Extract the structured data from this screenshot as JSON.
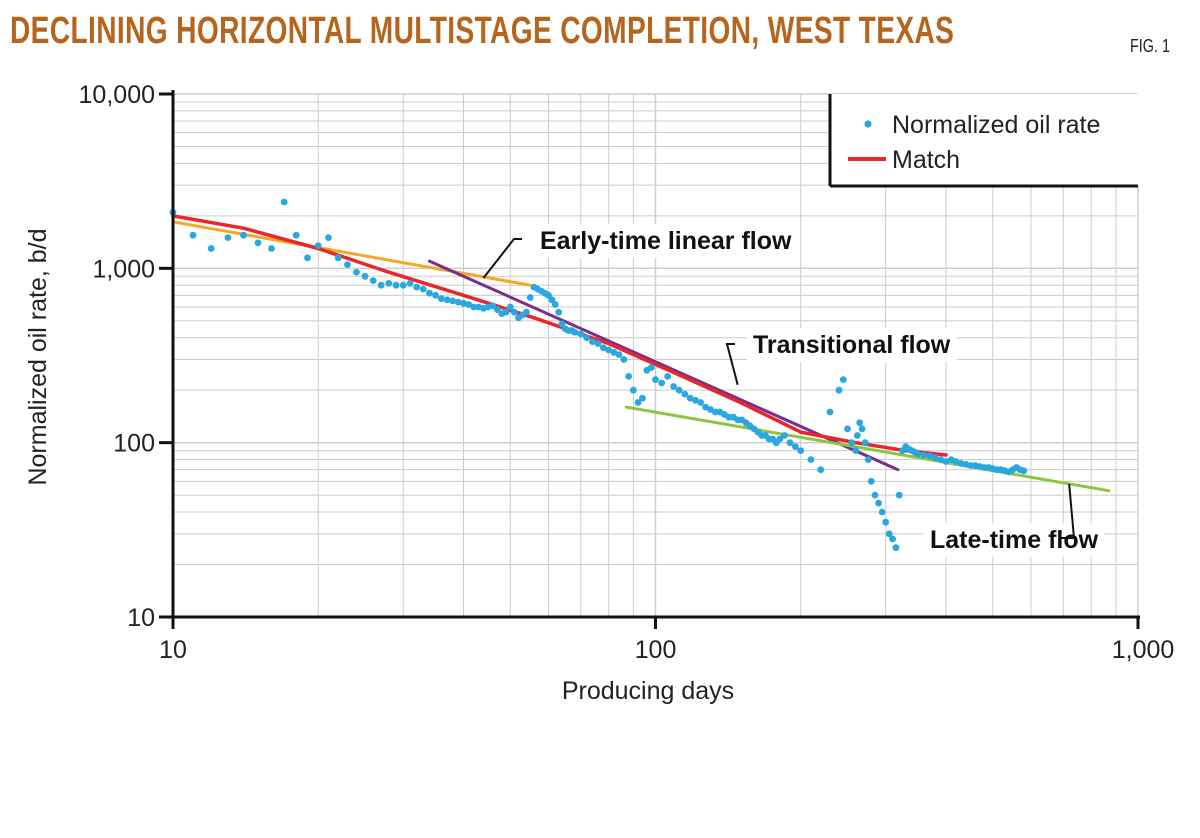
{
  "header": {
    "title": "DECLINING HORIZONTAL MULTISTAGE COMPLETION, WEST TEXAS",
    "fig_label": "FIG. 1"
  },
  "colors": {
    "title": "#b5651d",
    "points": "#29a8e0",
    "match": "#e8262b",
    "early": "#f5a623",
    "transitional": "#7b2d8e",
    "late": "#8cc63f",
    "grid": "#cccccc",
    "axis": "#111111"
  },
  "chart_data": {
    "type": "scatter",
    "xlabel": "Producing days",
    "ylabel": "Normalized oil rate, b/d",
    "xscale": "log",
    "yscale": "log",
    "xlim": [
      10,
      1000
    ],
    "ylim": [
      10,
      10000
    ],
    "grid": true,
    "x_ticks": [
      {
        "value": 10,
        "label": "10"
      },
      {
        "value": 100,
        "label": "100"
      },
      {
        "value": 1000,
        "label": "1,000"
      }
    ],
    "y_ticks": [
      {
        "value": 10,
        "label": "10"
      },
      {
        "value": 100,
        "label": "100"
      },
      {
        "value": 1000,
        "label": "1,000"
      },
      {
        "value": 10000,
        "label": "10,000"
      }
    ],
    "legend": {
      "position": "top-right",
      "entries": [
        {
          "label": "Normalized oil rate",
          "marker": "dot"
        },
        {
          "label": "Match",
          "marker": "line"
        }
      ]
    },
    "series": [
      {
        "name": "Normalized oil rate",
        "kind": "points",
        "x": [
          10,
          11,
          12,
          13,
          14,
          15,
          16,
          17,
          18,
          19,
          20,
          21,
          22,
          23,
          24,
          25,
          26,
          27,
          28,
          29,
          30,
          31,
          32,
          33,
          34,
          35,
          36,
          37,
          38,
          39,
          40,
          41,
          42,
          43,
          44,
          45,
          46,
          47,
          48,
          49,
          50,
          51,
          52,
          53,
          54,
          55,
          56,
          57,
          58,
          59,
          60,
          61,
          62,
          63,
          64,
          65,
          66,
          67,
          68,
          70,
          72,
          74,
          76,
          78,
          80,
          82,
          84,
          86,
          88,
          90,
          92,
          94,
          96,
          98,
          100,
          103,
          106,
          109,
          112,
          115,
          118,
          121,
          124,
          127,
          130,
          133,
          136,
          139,
          142,
          145,
          148,
          151,
          154,
          157,
          160,
          163,
          166,
          169,
          172,
          175,
          178,
          181,
          185,
          190,
          195,
          200,
          210,
          220,
          230,
          240,
          245,
          250,
          255,
          260,
          262,
          265,
          268,
          272,
          276,
          280,
          285,
          290,
          295,
          300,
          305,
          310,
          315,
          320,
          325,
          330,
          335,
          340,
          345,
          350,
          360,
          370,
          380,
          390,
          400,
          410,
          420,
          430,
          440,
          450,
          460,
          470,
          480,
          490,
          500,
          510,
          520,
          530,
          540,
          550,
          560,
          570,
          580
        ],
        "y": [
          2100,
          1550,
          1300,
          1500,
          1550,
          1400,
          1300,
          2400,
          1550,
          1150,
          1350,
          1500,
          1150,
          1050,
          950,
          900,
          850,
          800,
          820,
          800,
          800,
          820,
          780,
          760,
          720,
          700,
          670,
          660,
          650,
          640,
          630,
          620,
          600,
          600,
          590,
          600,
          610,
          580,
          550,
          560,
          600,
          560,
          520,
          540,
          560,
          680,
          780,
          760,
          740,
          720,
          700,
          660,
          620,
          560,
          480,
          450,
          440,
          440,
          430,
          420,
          400,
          380,
          370,
          350,
          340,
          330,
          320,
          300,
          240,
          200,
          170,
          180,
          260,
          270,
          230,
          220,
          240,
          210,
          200,
          190,
          180,
          175,
          170,
          160,
          155,
          150,
          150,
          145,
          140,
          140,
          135,
          135,
          130,
          125,
          120,
          115,
          110,
          110,
          105,
          105,
          100,
          105,
          110,
          100,
          95,
          90,
          80,
          70,
          150,
          200,
          230,
          120,
          100,
          90,
          110,
          130,
          120,
          100,
          80,
          60,
          50,
          45,
          40,
          35,
          30,
          28,
          25,
          50,
          90,
          95,
          92,
          90,
          88,
          86,
          85,
          84,
          82,
          80,
          78,
          80,
          78,
          76,
          75,
          74,
          74,
          73,
          72,
          72,
          71,
          70,
          70,
          69,
          68,
          70,
          72,
          70,
          69
        ]
      },
      {
        "name": "Match",
        "kind": "line",
        "x": [
          10,
          14,
          20,
          28,
          40,
          56,
          80,
          110,
          150,
          200,
          260,
          330,
          400
        ],
        "y": [
          2000,
          1700,
          1300,
          950,
          700,
          520,
          370,
          250,
          170,
          115,
          100,
          90,
          85
        ]
      },
      {
        "kind": "line",
        "x": [
          10,
          55
        ],
        "y": [
          1850,
          800
        ]
      },
      {
        "kind": "line",
        "x": [
          34,
          318
        ],
        "y": [
          1100,
          70
        ]
      },
      {
        "kind": "line",
        "x": [
          87,
          870
        ],
        "y": [
          160,
          53
        ]
      }
    ],
    "annotations": [
      {
        "text": "Early-time linear flow",
        "target_x": 44,
        "target_y": 880
      },
      {
        "text": "Transitional flow",
        "target_x": 148,
        "target_y": 215
      },
      {
        "text": "Late-time flow",
        "target_x": 720,
        "target_y": 58
      }
    ]
  }
}
